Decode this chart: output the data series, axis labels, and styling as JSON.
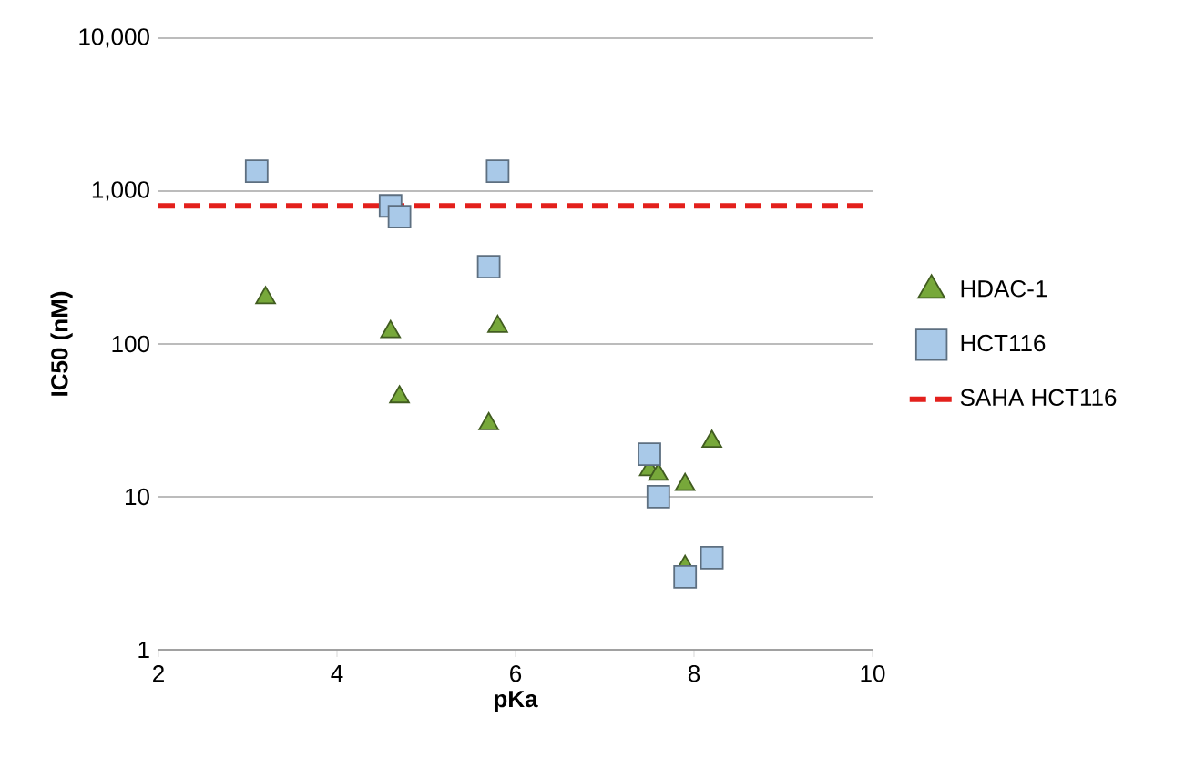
{
  "chart_data": {
    "type": "scatter",
    "xlabel": "pKa",
    "ylabel": "IC50 (nM)",
    "xlim": [
      2,
      10
    ],
    "xticks": [
      2,
      4,
      6,
      8,
      10
    ],
    "ylim": [
      1,
      10000
    ],
    "log": "y",
    "yticks": [
      1,
      10,
      100,
      {
        "value": 1000,
        "label": "1,000"
      },
      {
        "value": 10000,
        "label": "10,000"
      }
    ],
    "grid": "y",
    "legend": "right",
    "series": [
      {
        "name": "HDAC-1",
        "color": "#77a83a",
        "marker": "triangle",
        "x": [
          3.2,
          4.6,
          4.7,
          5.8,
          5.7,
          7.5,
          7.6,
          7.9,
          8.2,
          7.9
        ],
        "values": [
          200,
          120,
          45,
          130,
          30,
          15,
          14,
          12,
          23,
          3.5
        ]
      },
      {
        "name": "HCT116",
        "color": "#a9c9e8",
        "marker": "square",
        "x": [
          3.1,
          4.6,
          4.7,
          5.8,
          5.7,
          7.5,
          7.6,
          7.9,
          8.2
        ],
        "values": [
          1350,
          800,
          680,
          1350,
          320,
          19,
          10,
          3,
          4
        ]
      },
      {
        "name": "SAHA HCT116",
        "type": "line",
        "line_style": "dashed",
        "marker": "none",
        "color": "#e3201c",
        "x": [
          2,
          10
        ],
        "values": [
          800,
          800
        ]
      }
    ]
  }
}
